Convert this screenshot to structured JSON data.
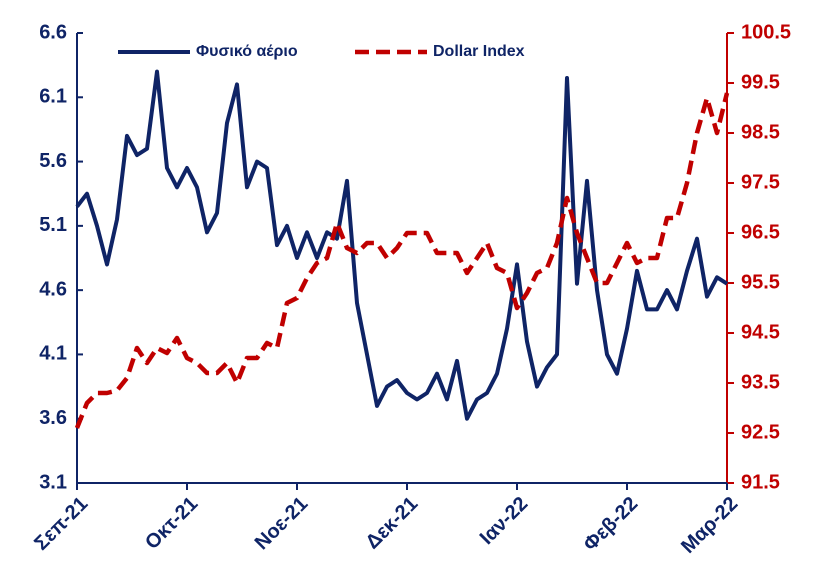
{
  "chart_data": {
    "type": "line",
    "categories": [
      "Σεπ-21",
      null,
      null,
      null,
      null,
      null,
      null,
      null,
      null,
      null,
      null,
      "Οκτ-21",
      null,
      null,
      null,
      null,
      null,
      null,
      null,
      null,
      null,
      null,
      "Νοε-21",
      null,
      null,
      null,
      null,
      null,
      null,
      null,
      null,
      null,
      null,
      "Δεκ-21",
      null,
      null,
      null,
      null,
      null,
      null,
      null,
      null,
      null,
      null,
      "Ιαν-22",
      null,
      null,
      null,
      null,
      null,
      null,
      null,
      null,
      null,
      null,
      "Φεβ-22",
      null,
      null,
      null,
      null,
      null,
      null,
      null,
      null,
      null,
      "Μαρ-22"
    ],
    "series": [
      {
        "name": "Φυσικό αέριο",
        "color": "#0f2466",
        "axis": "y",
        "values": [
          5.25,
          5.35,
          5.1,
          4.8,
          5.15,
          5.8,
          5.65,
          5.7,
          6.3,
          5.55,
          5.4,
          5.55,
          5.4,
          5.05,
          5.2,
          5.9,
          6.2,
          5.4,
          5.6,
          5.55,
          4.95,
          5.1,
          4.85,
          5.05,
          4.85,
          5.05,
          5.0,
          5.45,
          4.5,
          4.1,
          3.7,
          3.85,
          3.9,
          3.8,
          3.75,
          3.8,
          3.95,
          3.75,
          4.05,
          3.6,
          3.75,
          3.8,
          3.95,
          4.3,
          4.8,
          4.2,
          3.85,
          4.0,
          4.1,
          6.25,
          4.65,
          5.45,
          4.6,
          4.1,
          3.95,
          4.3,
          4.75,
          4.45,
          4.45,
          4.6,
          4.45,
          4.75,
          5.0,
          4.55,
          4.7,
          4.65
        ]
      },
      {
        "name": "Dollar Index",
        "color": "#c00000",
        "axis": "y2",
        "dashed": true,
        "values": [
          92.6,
          93.1,
          93.3,
          93.3,
          93.35,
          93.6,
          94.2,
          93.9,
          94.2,
          94.1,
          94.4,
          94.0,
          93.9,
          93.7,
          93.7,
          93.9,
          93.5,
          94.0,
          94.0,
          94.3,
          94.2,
          95.1,
          95.2,
          95.6,
          95.9,
          96.0,
          96.7,
          96.2,
          96.1,
          96.3,
          96.3,
          96.0,
          96.2,
          96.5,
          96.5,
          96.5,
          96.1,
          96.1,
          96.1,
          95.7,
          96.0,
          96.3,
          95.8,
          95.7,
          95.0,
          95.3,
          95.7,
          95.8,
          96.3,
          97.2,
          96.5,
          96.0,
          95.5,
          95.5,
          95.9,
          96.3,
          95.9,
          96.0,
          96.0,
          96.8,
          96.8,
          97.5,
          98.5,
          99.2,
          98.5,
          99.3
        ]
      }
    ],
    "ylim": [
      3.1,
      6.6
    ],
    "yticks": [
      3.1,
      3.6,
      4.1,
      4.6,
      5.1,
      5.6,
      6.1,
      6.6
    ],
    "y2lim": [
      91.5,
      100.5
    ],
    "y2ticks": [
      91.5,
      92.5,
      93.5,
      94.5,
      95.5,
      96.5,
      97.5,
      98.5,
      99.5,
      100.5
    ],
    "grid": false,
    "legend": "top"
  }
}
